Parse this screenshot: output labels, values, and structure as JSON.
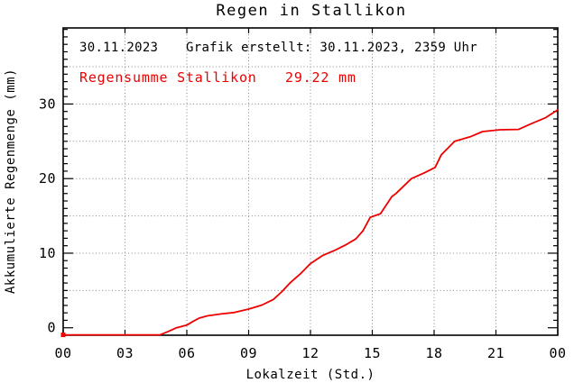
{
  "title": "Regen in Stallikon",
  "annotations": {
    "date": "30.11.2023",
    "created": "Grafik erstellt: 30.11.2023, 2359 Uhr",
    "sum_label": "Regensumme Stallikon",
    "sum_value": "29.22 mm"
  },
  "colors": {
    "curve": "#ee0000",
    "annotation_red": "#ee0000",
    "axis": "#000000",
    "grid": "#888888",
    "background": "#ffffff"
  },
  "chart_data": {
    "type": "line",
    "title": "Regen in Stallikon",
    "xlabel": "Lokalzeit (Std.)",
    "ylabel": "Akkumulierte Regenmenge (mm)",
    "xlim": [
      0,
      24
    ],
    "ylim": [
      -1.0,
      40.2
    ],
    "x_major_ticks": [
      0,
      3,
      6,
      9,
      12,
      15,
      18,
      21,
      24
    ],
    "x_tick_labels": [
      "00",
      "03",
      "06",
      "09",
      "12",
      "15",
      "18",
      "21",
      "00"
    ],
    "y_major_ticks": [
      0,
      10,
      20,
      30
    ],
    "y_tick_labels": [
      "0",
      "10",
      "20",
      "30"
    ],
    "y_minor_step": 1,
    "grid_x": [
      3,
      6,
      9,
      12,
      15,
      18,
      21
    ],
    "grid_y": [
      5,
      10,
      15,
      20,
      25,
      30,
      35
    ],
    "grid_style": "dotted",
    "legend_position": "none",
    "series": [
      {
        "name": "Regensumme Stallikon",
        "total_mm": 29.22,
        "color": "#ee0000",
        "x_unit": "hour_local",
        "y_unit": "mm",
        "points": [
          [
            0.0,
            -0.95
          ],
          [
            1.0,
            -0.95
          ],
          [
            2.0,
            -0.95
          ],
          [
            3.0,
            -0.95
          ],
          [
            4.0,
            -0.95
          ],
          [
            4.7,
            -0.95
          ],
          [
            5.05,
            -0.55
          ],
          [
            5.5,
            0.0
          ],
          [
            6.0,
            0.35
          ],
          [
            6.3,
            0.85
          ],
          [
            6.6,
            1.3
          ],
          [
            7.0,
            1.6
          ],
          [
            7.65,
            1.85
          ],
          [
            8.3,
            2.05
          ],
          [
            9.0,
            2.5
          ],
          [
            9.65,
            3.05
          ],
          [
            10.2,
            3.8
          ],
          [
            10.6,
            4.8
          ],
          [
            11.0,
            6.0
          ],
          [
            11.5,
            7.2
          ],
          [
            12.0,
            8.6
          ],
          [
            12.6,
            9.7
          ],
          [
            13.2,
            10.4
          ],
          [
            13.7,
            11.1
          ],
          [
            14.2,
            11.9
          ],
          [
            14.55,
            13.0
          ],
          [
            14.9,
            14.8
          ],
          [
            15.4,
            15.3
          ],
          [
            15.95,
            17.6
          ],
          [
            16.15,
            18.0
          ],
          [
            16.9,
            20.0
          ],
          [
            17.55,
            20.8
          ],
          [
            18.05,
            21.5
          ],
          [
            18.35,
            23.2
          ],
          [
            19.0,
            25.0
          ],
          [
            19.75,
            25.6
          ],
          [
            20.35,
            26.3
          ],
          [
            21.2,
            26.55
          ],
          [
            22.1,
            26.6
          ],
          [
            22.7,
            27.35
          ],
          [
            23.4,
            28.15
          ],
          [
            24.0,
            29.22
          ]
        ]
      }
    ]
  }
}
